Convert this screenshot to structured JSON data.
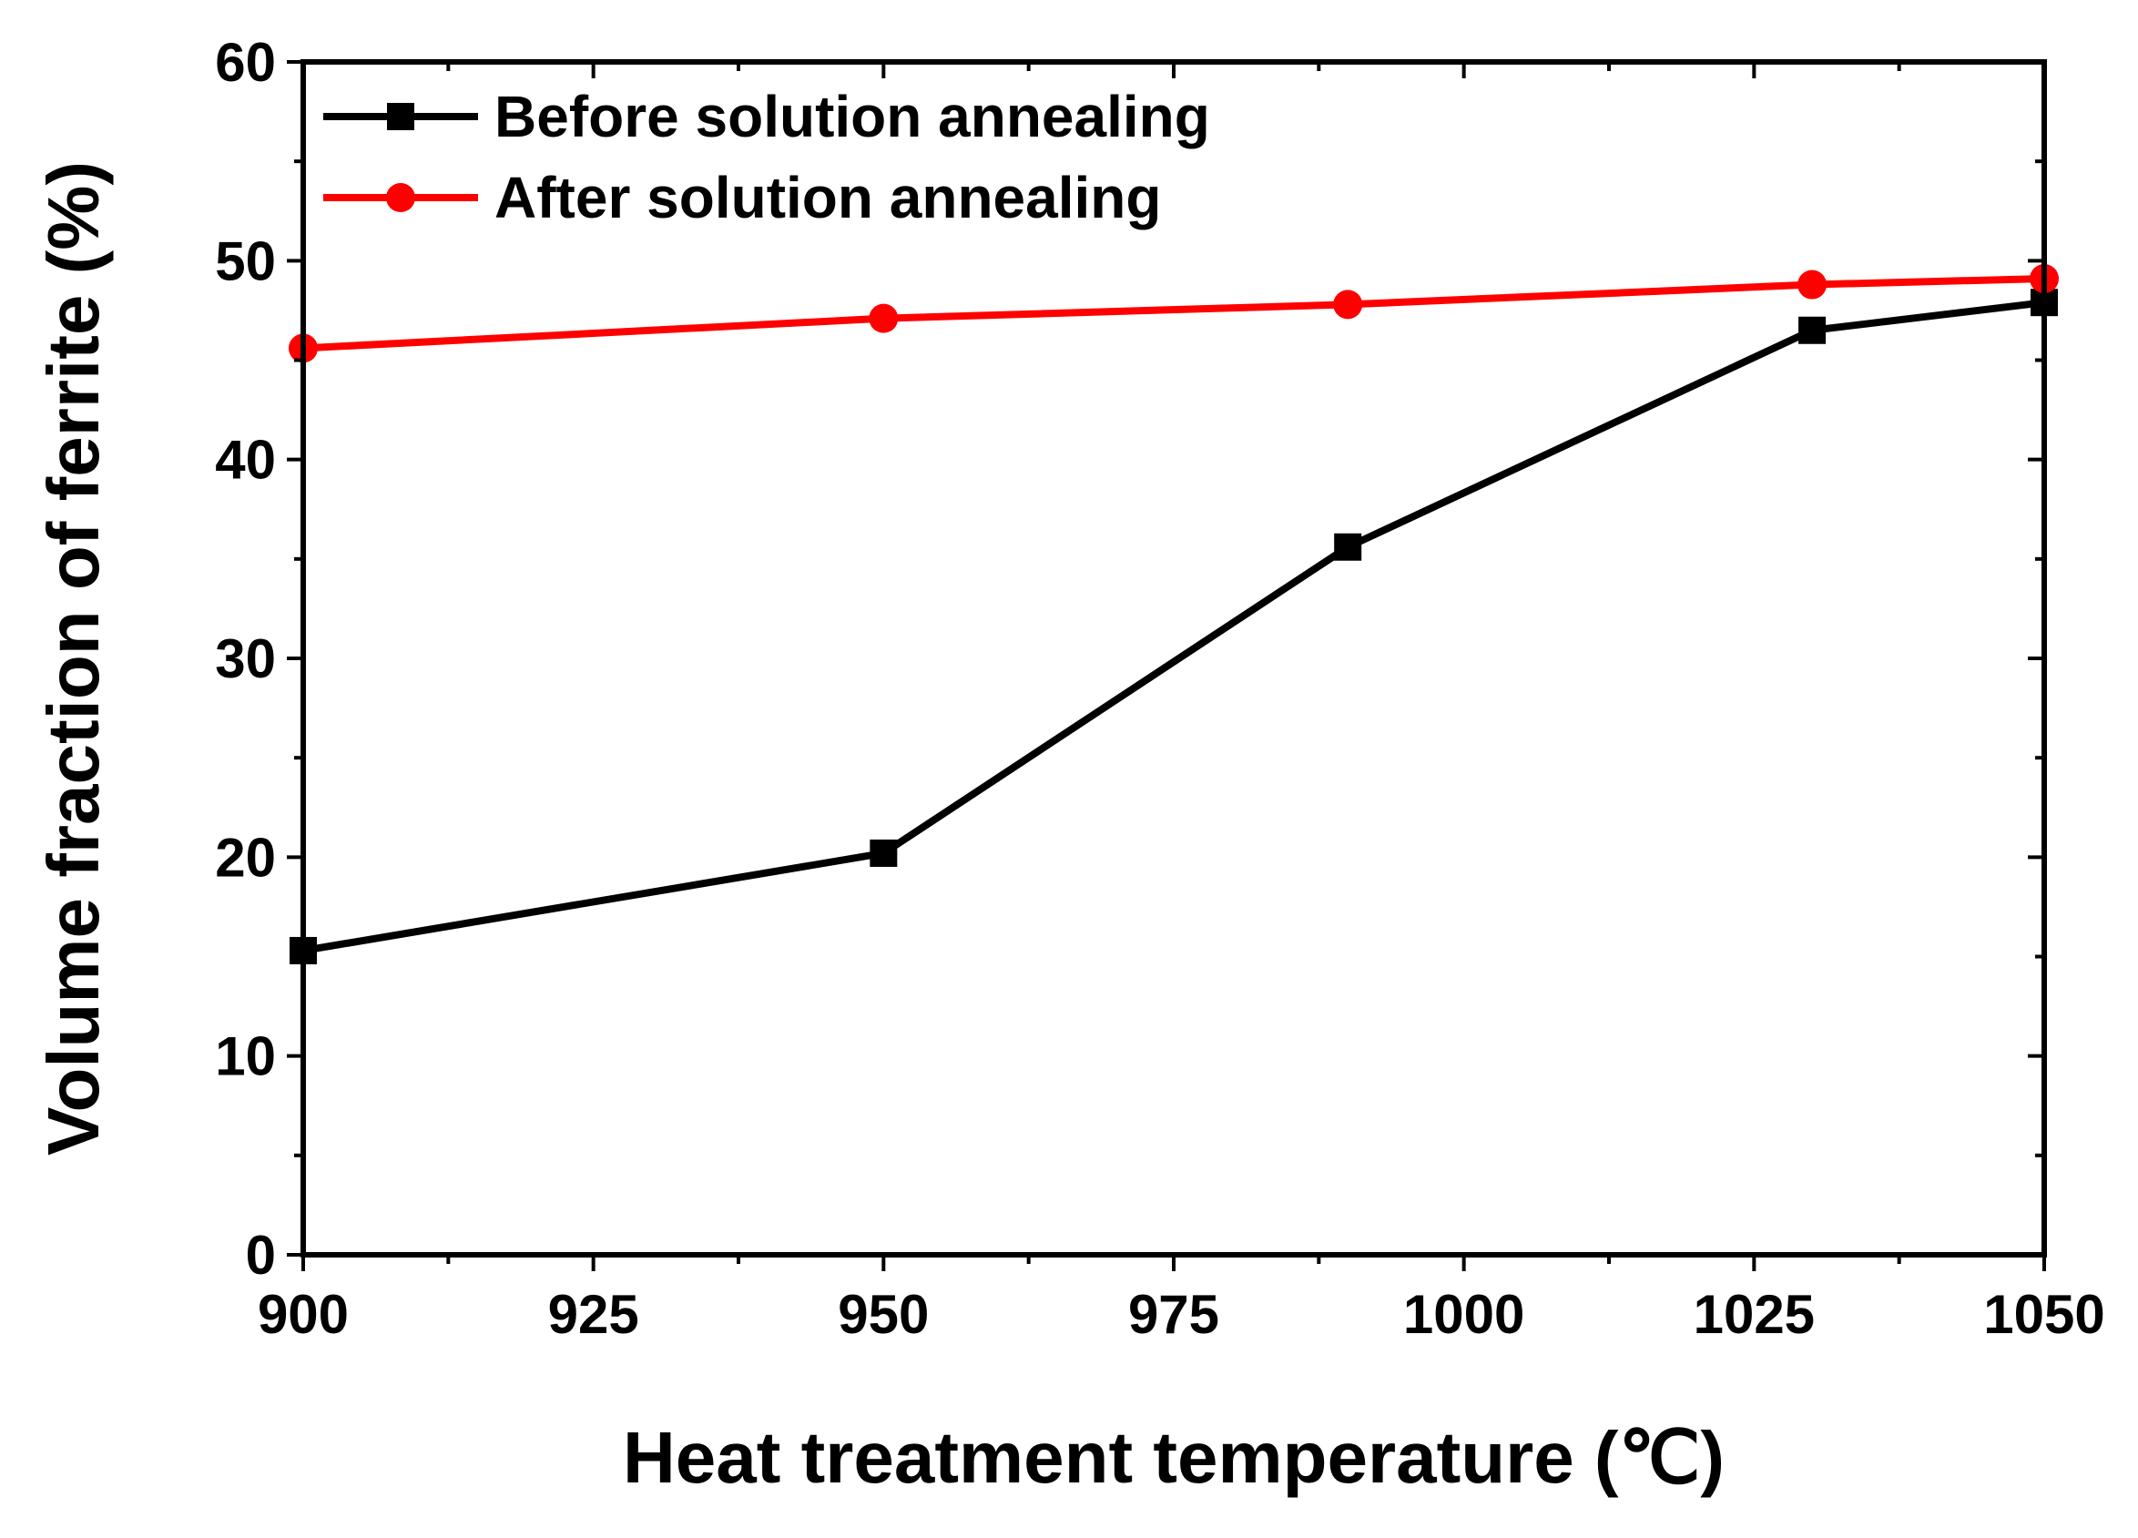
{
  "chart_data": {
    "type": "line",
    "title": "",
    "xlabel": "Heat treatment temperature (℃)",
    "ylabel": "Volume fraction of ferrite (%)",
    "xlim": [
      900,
      1050
    ],
    "ylim": [
      0,
      60
    ],
    "x_ticks": [
      900,
      925,
      950,
      975,
      1000,
      1025,
      1050
    ],
    "y_ticks": [
      0,
      10,
      20,
      30,
      40,
      50,
      60
    ],
    "x_tick_labels": [
      "900",
      "925",
      "950",
      "975",
      "1000",
      "1025",
      "1050"
    ],
    "y_tick_labels": [
      "0",
      "10",
      "20",
      "30",
      "40",
      "50",
      "60"
    ],
    "grid": false,
    "legend_position": "top-left",
    "series": [
      {
        "name": "Before solution annealing",
        "color": "#000000",
        "marker": "square",
        "x": [
          900,
          950,
          990,
          1030,
          1050
        ],
        "y": [
          15.3,
          20.2,
          35.6,
          46.5,
          47.9
        ]
      },
      {
        "name": "After solution annealing",
        "color": "#ff0000",
        "marker": "circle",
        "x": [
          900,
          950,
          990,
          1030,
          1050
        ],
        "y": [
          45.6,
          47.1,
          47.8,
          48.8,
          49.1
        ]
      }
    ]
  }
}
